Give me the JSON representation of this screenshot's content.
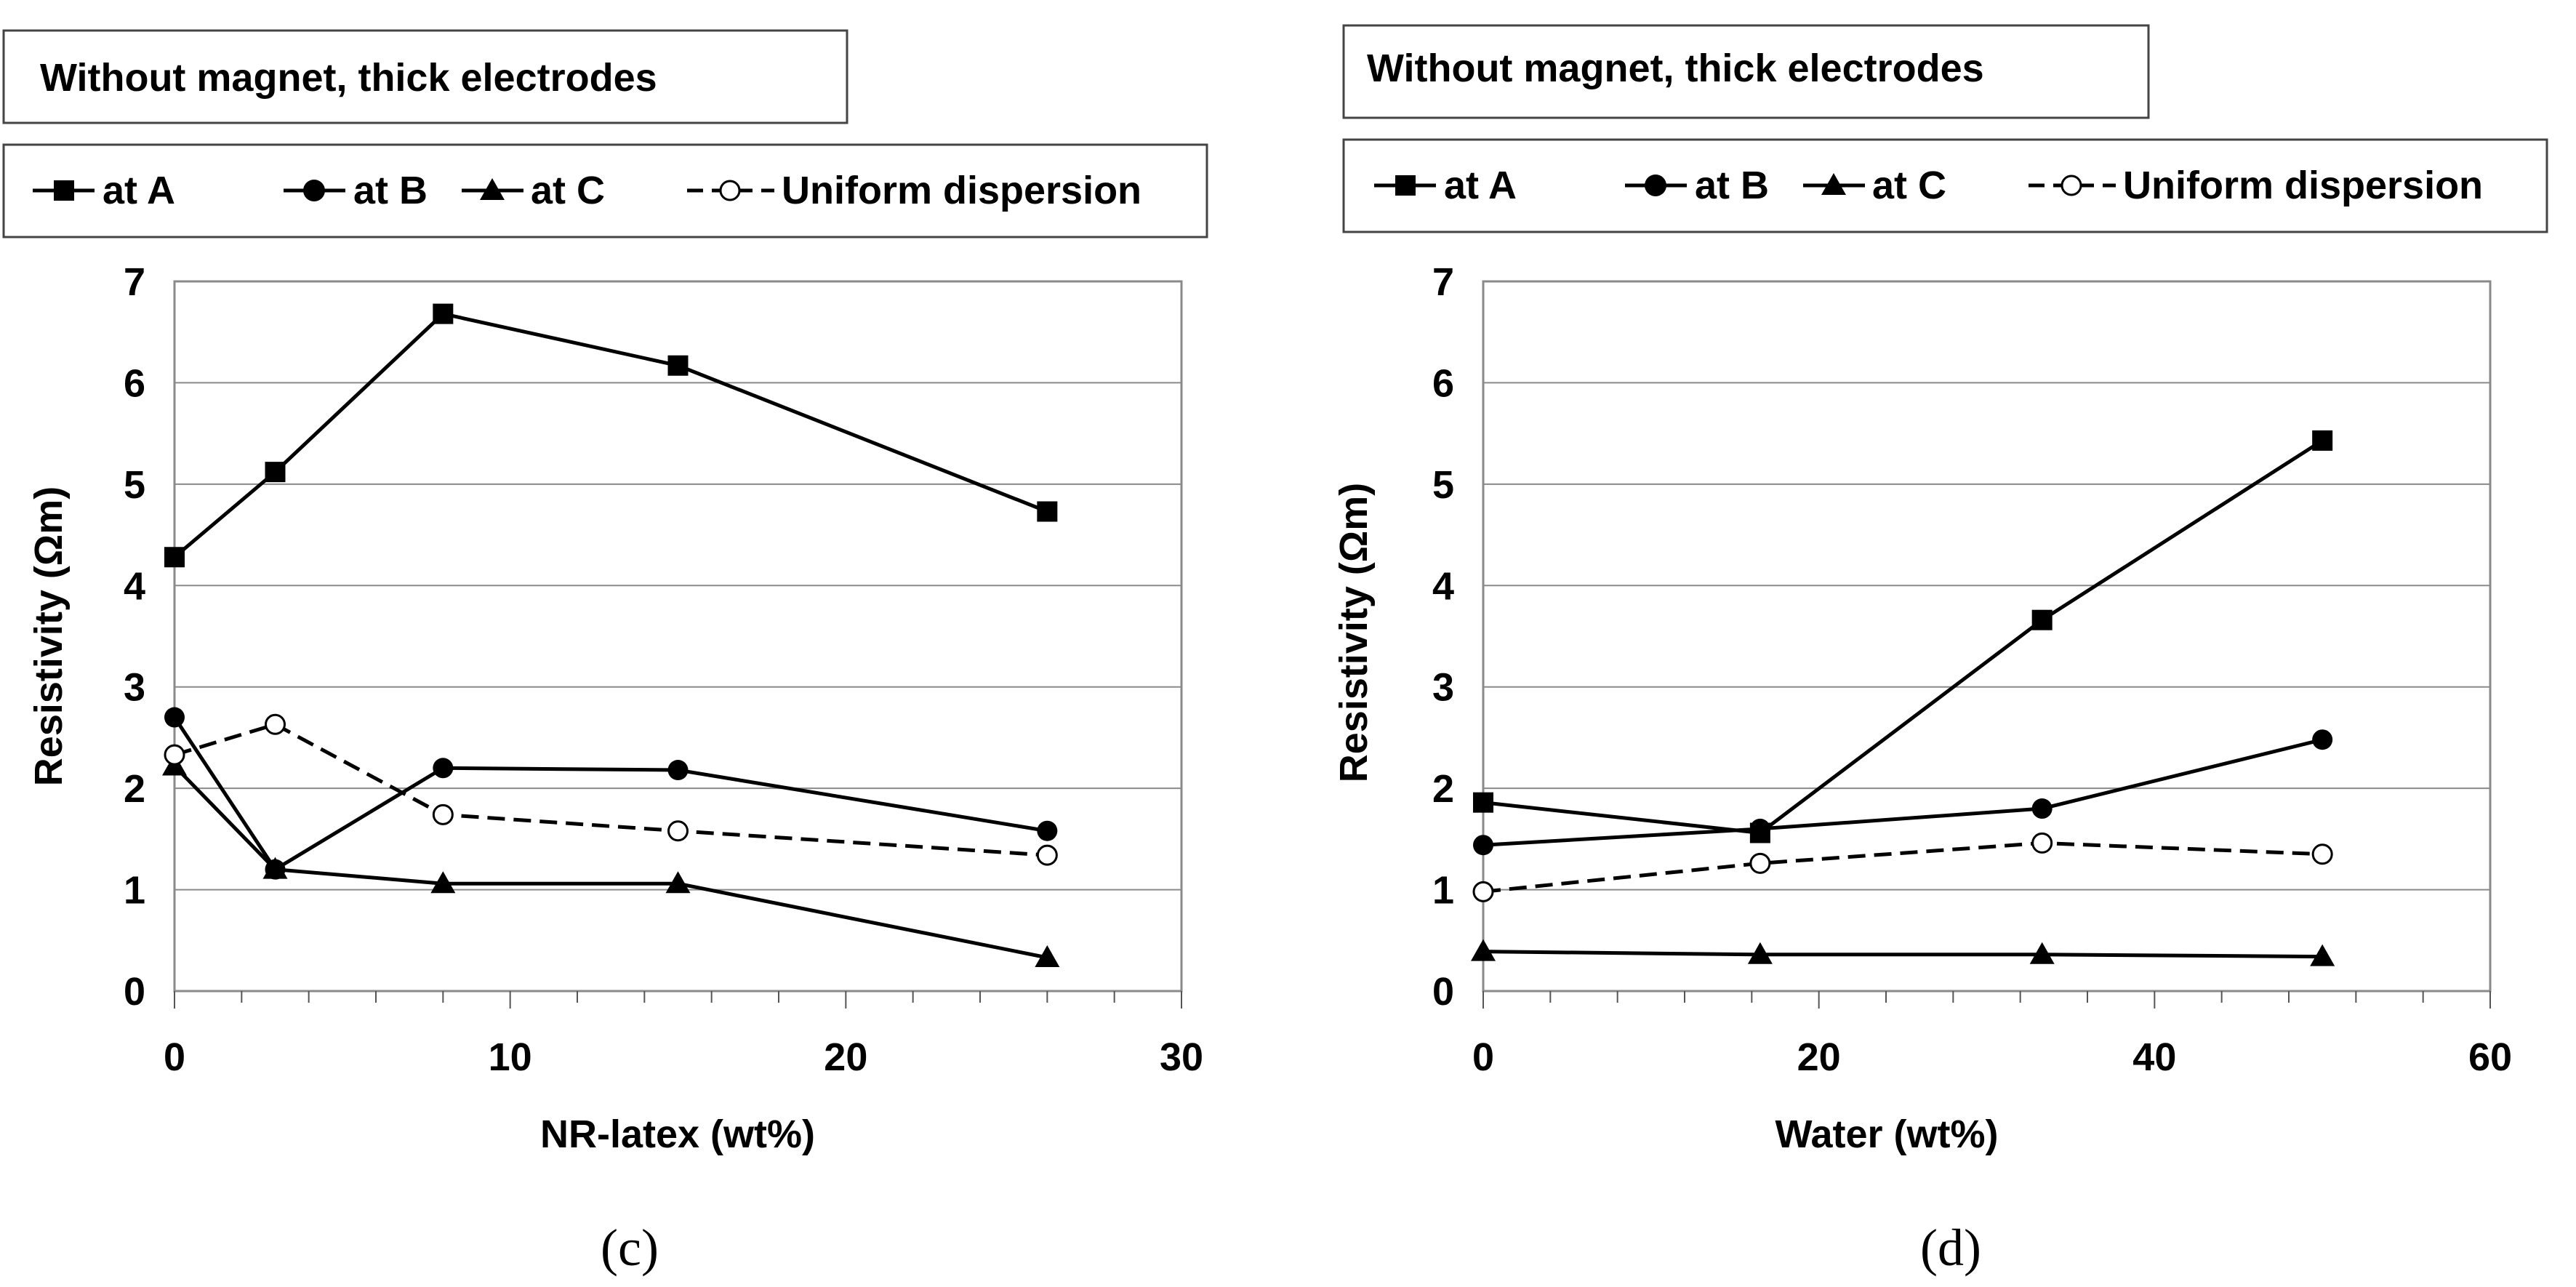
{
  "chart_data": [
    {
      "type": "line",
      "title": "Without magnet, thick electrodes",
      "panel_label": "(c)",
      "xlabel": "NR-latex  (wt%)",
      "ylabel": "Resistivity  (Ωm)",
      "xlim": [
        0,
        30
      ],
      "ylim": [
        0,
        7
      ],
      "xticks": [
        0,
        10,
        20,
        30
      ],
      "yticks": [
        0,
        1,
        2,
        3,
        4,
        5,
        6,
        7
      ],
      "grid": "horizontal",
      "legend_position": "top",
      "series": [
        {
          "name": "at A",
          "marker": "square",
          "dash": "solid",
          "x": [
            0,
            3,
            8,
            15,
            26
          ],
          "y": [
            4.28,
            5.12,
            6.68,
            6.17,
            4.73
          ]
        },
        {
          "name": "at B",
          "marker": "circle",
          "dash": "solid",
          "x": [
            0,
            3,
            8,
            15,
            26
          ],
          "y": [
            2.7,
            1.2,
            2.2,
            2.18,
            1.58
          ]
        },
        {
          "name": "at C",
          "marker": "triangle",
          "dash": "solid",
          "x": [
            0,
            3,
            8,
            15,
            26
          ],
          "y": [
            2.22,
            1.2,
            1.06,
            1.06,
            0.33
          ]
        },
        {
          "name": "Uniform dispersion",
          "marker": "open-circle",
          "dash": "dashed",
          "x": [
            0,
            3,
            8,
            15,
            26
          ],
          "y": [
            2.33,
            2.63,
            1.74,
            1.58,
            1.34
          ]
        }
      ]
    },
    {
      "type": "line",
      "title": "Without magnet, thick electrodes",
      "panel_label": "(d)",
      "xlabel": "Water   (wt%)",
      "ylabel": "Resistivity  (Ωm)",
      "xlim": [
        0,
        60
      ],
      "ylim": [
        0,
        7
      ],
      "xticks": [
        0,
        20,
        40,
        60
      ],
      "yticks": [
        0,
        1,
        2,
        3,
        4,
        5,
        6,
        7
      ],
      "grid": "horizontal",
      "legend_position": "top",
      "series": [
        {
          "name": "at A",
          "marker": "square",
          "dash": "solid",
          "x": [
            0,
            16.5,
            33.3,
            50
          ],
          "y": [
            1.86,
            1.56,
            3.66,
            5.43
          ]
        },
        {
          "name": "at B",
          "marker": "circle",
          "dash": "solid",
          "x": [
            0,
            16.5,
            33.3,
            50
          ],
          "y": [
            1.44,
            1.6,
            1.8,
            2.48
          ]
        },
        {
          "name": "at C",
          "marker": "triangle",
          "dash": "solid",
          "x": [
            0,
            16.5,
            33.3,
            50
          ],
          "y": [
            0.39,
            0.36,
            0.36,
            0.34
          ]
        },
        {
          "name": "Uniform dispersion",
          "marker": "open-circle",
          "dash": "dashed",
          "x": [
            0,
            16.5,
            33.3,
            50
          ],
          "y": [
            0.98,
            1.26,
            1.46,
            1.35
          ]
        }
      ]
    }
  ]
}
